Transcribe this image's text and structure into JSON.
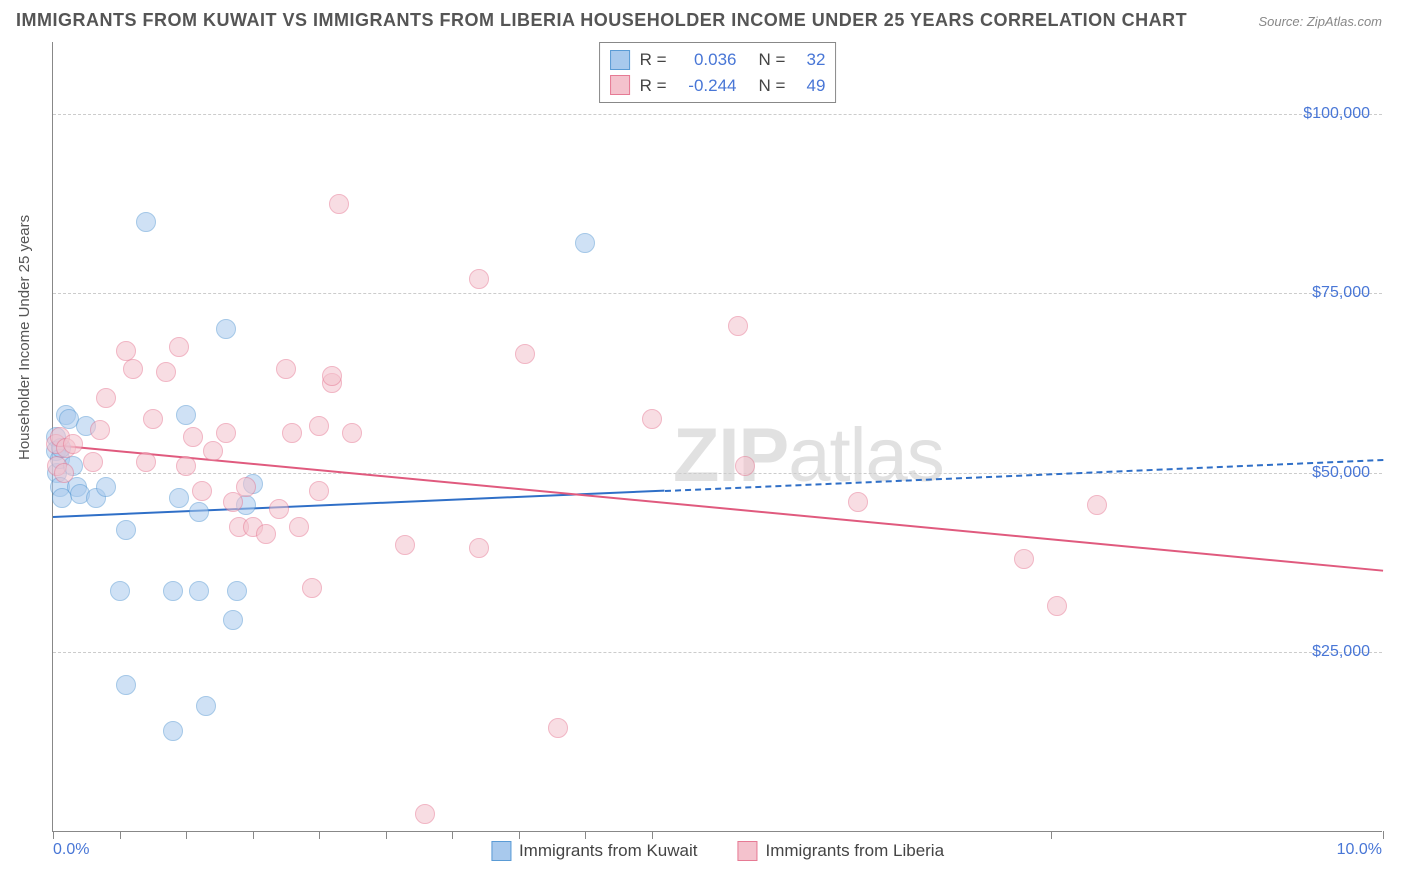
{
  "title": "IMMIGRANTS FROM KUWAIT VS IMMIGRANTS FROM LIBERIA HOUSEHOLDER INCOME UNDER 25 YEARS CORRELATION CHART",
  "source": "Source: ZipAtlas.com",
  "ylabel": "Householder Income Under 25 years",
  "watermark_a": "ZIP",
  "watermark_b": "atlas",
  "chart": {
    "type": "scatter",
    "background_color": "#ffffff",
    "grid_color": "#cccccc",
    "axis_color": "#888888",
    "text_color": "#555555",
    "tick_label_color": "#4876d6",
    "title_fontsize": 18,
    "label_fontsize": 15,
    "tick_fontsize": 16,
    "marker_radius": 10,
    "marker_opacity": 0.55,
    "xlim": [
      0.0,
      10.0
    ],
    "ylim": [
      0,
      110000
    ],
    "x_ticks": [
      0.0,
      0.5,
      1.0,
      1.5,
      2.0,
      2.5,
      3.0,
      3.5,
      4.0,
      4.5,
      7.5,
      10.0
    ],
    "x_tick_labels": {
      "0.0": "0.0%",
      "10.0": "10.0%"
    },
    "y_gridlines": [
      25000,
      50000,
      75000,
      100000
    ],
    "y_tick_labels": {
      "25000": "$25,000",
      "50000": "$50,000",
      "75000": "$75,000",
      "100000": "$100,000"
    },
    "series": [
      {
        "name": "Immigrants from Kuwait",
        "fill": "#a8c9ed",
        "stroke": "#5a9bd5",
        "R": "0.036",
        "N": "32",
        "trend": {
          "y_at_x0": 44000,
          "y_at_xmax": 52000,
          "solid_until_x": 4.6,
          "color": "#2f6fc7",
          "width": 2
        },
        "points": [
          [
            0.02,
            55000
          ],
          [
            0.02,
            53000
          ],
          [
            0.03,
            50000
          ],
          [
            0.05,
            52000
          ],
          [
            0.05,
            48000
          ],
          [
            0.06,
            53500
          ],
          [
            0.07,
            46500
          ],
          [
            0.1,
            58000
          ],
          [
            0.12,
            57500
          ],
          [
            0.18,
            48000
          ],
          [
            0.2,
            47000
          ],
          [
            0.25,
            56500
          ],
          [
            0.32,
            46500
          ],
          [
            0.4,
            48000
          ],
          [
            0.5,
            33500
          ],
          [
            0.55,
            20500
          ],
          [
            0.55,
            42000
          ],
          [
            0.7,
            85000
          ],
          [
            0.9,
            33500
          ],
          [
            0.9,
            14000
          ],
          [
            0.95,
            46500
          ],
          [
            1.0,
            58000
          ],
          [
            1.1,
            33500
          ],
          [
            1.1,
            44500
          ],
          [
            1.15,
            17500
          ],
          [
            1.3,
            70000
          ],
          [
            1.35,
            29500
          ],
          [
            1.38,
            33500
          ],
          [
            1.45,
            45500
          ],
          [
            1.5,
            48500
          ],
          [
            4.0,
            82000
          ],
          [
            0.15,
            51000
          ]
        ]
      },
      {
        "name": "Immigrants from Liberia",
        "fill": "#f4c2cd",
        "stroke": "#e67a94",
        "R": "-0.244",
        "N": "49",
        "trend": {
          "y_at_x0": 54000,
          "y_at_xmax": 36500,
          "solid_until_x": 10.0,
          "color": "#e05a7e",
          "width": 2
        },
        "points": [
          [
            0.02,
            54000
          ],
          [
            0.03,
            51000
          ],
          [
            0.05,
            55000
          ],
          [
            0.08,
            50000
          ],
          [
            0.1,
            53500
          ],
          [
            0.15,
            54000
          ],
          [
            0.3,
            51500
          ],
          [
            0.35,
            56000
          ],
          [
            0.4,
            60500
          ],
          [
            0.55,
            67000
          ],
          [
            0.6,
            64500
          ],
          [
            0.7,
            51500
          ],
          [
            0.75,
            57500
          ],
          [
            0.85,
            64000
          ],
          [
            0.95,
            67500
          ],
          [
            1.0,
            51000
          ],
          [
            1.05,
            55000
          ],
          [
            1.12,
            47500
          ],
          [
            1.2,
            53000
          ],
          [
            1.3,
            55500
          ],
          [
            1.35,
            46000
          ],
          [
            1.4,
            42500
          ],
          [
            1.45,
            48000
          ],
          [
            1.5,
            42500
          ],
          [
            1.6,
            41500
          ],
          [
            1.7,
            45000
          ],
          [
            1.75,
            64500
          ],
          [
            1.8,
            55500
          ],
          [
            1.85,
            42500
          ],
          [
            1.95,
            34000
          ],
          [
            2.0,
            47500
          ],
          [
            2.0,
            56500
          ],
          [
            2.1,
            62500
          ],
          [
            2.1,
            63500
          ],
          [
            2.15,
            87500
          ],
          [
            2.25,
            55500
          ],
          [
            2.65,
            40000
          ],
          [
            2.8,
            2500
          ],
          [
            3.2,
            77000
          ],
          [
            3.2,
            39500
          ],
          [
            3.55,
            66500
          ],
          [
            3.8,
            14500
          ],
          [
            4.5,
            57500
          ],
          [
            5.15,
            70500
          ],
          [
            5.2,
            51000
          ],
          [
            6.05,
            46000
          ],
          [
            7.3,
            38000
          ],
          [
            7.55,
            31500
          ],
          [
            7.85,
            45500
          ]
        ]
      }
    ],
    "legend_bottom": [
      {
        "swatch_fill": "#a8c9ed",
        "swatch_stroke": "#5a9bd5",
        "label": "Immigrants from Kuwait"
      },
      {
        "swatch_fill": "#f4c2cd",
        "swatch_stroke": "#e67a94",
        "label": "Immigrants from Liberia"
      }
    ]
  }
}
